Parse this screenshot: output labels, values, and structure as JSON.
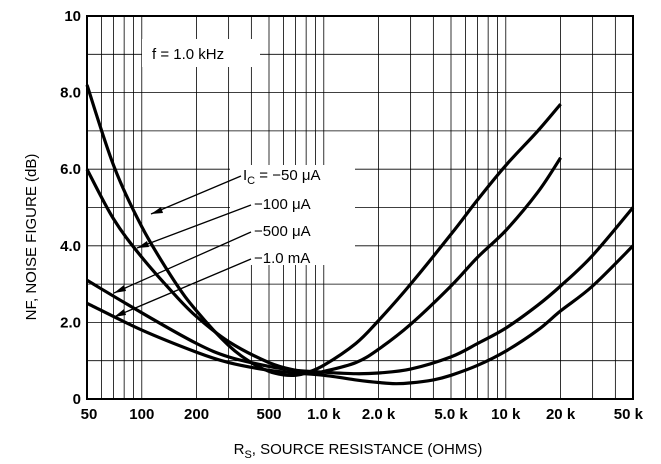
{
  "chart_data": {
    "type": "line",
    "x_scale": "log",
    "xlim": [
      50,
      50000
    ],
    "ylim": [
      0,
      10
    ],
    "grid": true,
    "xlabel": {
      "main": "R",
      "sub": "S",
      "rest": ", SOURCE RESISTANCE (OHMS)"
    },
    "ylabel": "NF, NOISE FIGURE (dB)",
    "x_ticks": [
      {
        "value": 50,
        "label": "50"
      },
      {
        "value": 100,
        "label": "100"
      },
      {
        "value": 200,
        "label": "200"
      },
      {
        "value": 500,
        "label": "500"
      },
      {
        "value": 1000,
        "label": "1.0 k"
      },
      {
        "value": 2000,
        "label": "2.0 k"
      },
      {
        "value": 5000,
        "label": "5.0 k"
      },
      {
        "value": 10000,
        "label": "10 k"
      },
      {
        "value": 20000,
        "label": "20 k"
      },
      {
        "value": 50000,
        "label": "50 k"
      }
    ],
    "y_ticks": [
      {
        "value": 0,
        "label": "0"
      },
      {
        "value": 2,
        "label": "2.0"
      },
      {
        "value": 4,
        "label": "4.0"
      },
      {
        "value": 6,
        "label": "6.0"
      },
      {
        "value": 8,
        "label": "8.0"
      },
      {
        "value": 10,
        "label": "10"
      }
    ],
    "condition_label": "f = 1.0 kHz",
    "legend_labels": [
      {
        "pre": "I",
        "sub": "C",
        "post": " = −50 μA"
      },
      {
        "pre": "−100 μA",
        "sub": "",
        "post": ""
      },
      {
        "pre": "−500 μA",
        "sub": "",
        "post": ""
      },
      {
        "pre": "−1.0 mA",
        "sub": "",
        "post": ""
      }
    ],
    "series": [
      {
        "x": [
          50,
          70,
          100,
          150,
          200,
          300,
          400,
          500,
          600,
          700,
          800,
          1000,
          1500,
          2000,
          3000,
          5000,
          7000,
          10000,
          15000,
          20000
        ],
        "y": [
          8.2,
          6.1,
          4.5,
          3.1,
          2.3,
          1.4,
          0.95,
          0.72,
          0.63,
          0.62,
          0.68,
          0.88,
          1.45,
          2.05,
          3.0,
          4.3,
          5.2,
          6.1,
          7.0,
          7.7
        ]
      },
      {
        "x": [
          50,
          70,
          100,
          150,
          200,
          300,
          500,
          700,
          900,
          1000,
          1500,
          2000,
          3000,
          5000,
          7000,
          10000,
          15000,
          20000
        ],
        "y": [
          6.0,
          4.7,
          3.7,
          2.75,
          2.15,
          1.5,
          0.95,
          0.75,
          0.7,
          0.72,
          0.95,
          1.3,
          1.95,
          2.95,
          3.7,
          4.4,
          5.4,
          6.3
        ]
      },
      {
        "x": [
          50,
          100,
          200,
          300,
          500,
          700,
          1000,
          1500,
          2000,
          3000,
          5000,
          7000,
          10000,
          15000,
          20000,
          30000,
          50000
        ],
        "y": [
          3.1,
          2.25,
          1.45,
          1.1,
          0.85,
          0.75,
          0.7,
          0.66,
          0.68,
          0.78,
          1.1,
          1.45,
          1.85,
          2.45,
          2.95,
          3.75,
          5.0
        ]
      },
      {
        "x": [
          50,
          100,
          200,
          300,
          500,
          700,
          1000,
          1500,
          2000,
          2500,
          3000,
          4000,
          5000,
          7000,
          10000,
          15000,
          20000,
          30000,
          50000
        ],
        "y": [
          2.5,
          1.8,
          1.22,
          0.95,
          0.75,
          0.68,
          0.62,
          0.5,
          0.43,
          0.4,
          0.42,
          0.5,
          0.62,
          0.88,
          1.25,
          1.8,
          2.3,
          2.95,
          4.0
        ]
      }
    ]
  }
}
